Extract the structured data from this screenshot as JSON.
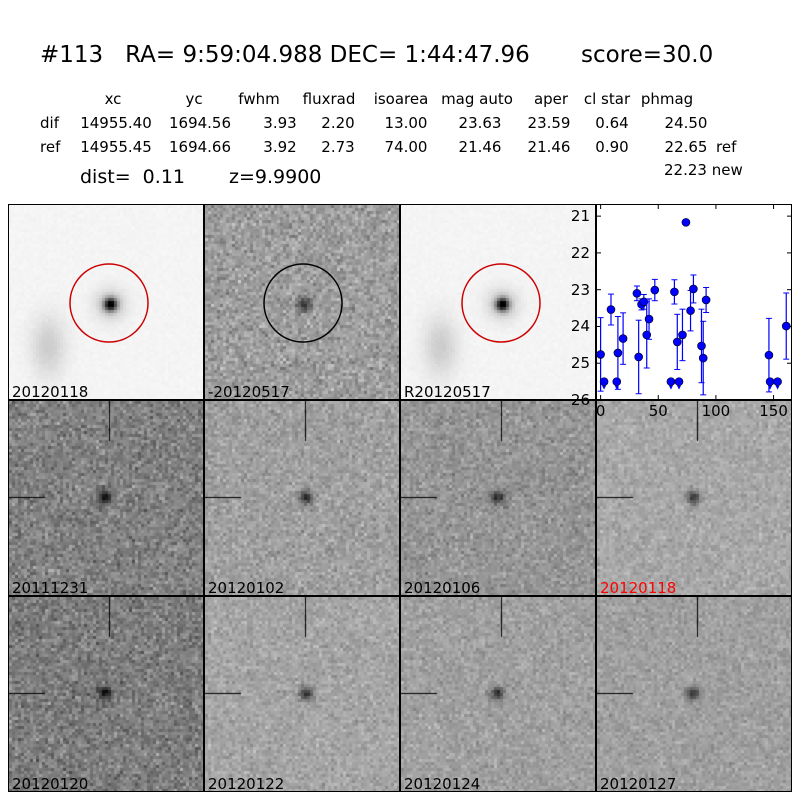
{
  "title": "#113   RA= 9:59:04.988 DEC= 1:44:47.96       score=30.0",
  "table": {
    "columns": [
      "xc",
      "yc",
      "fwhm",
      "fluxrad",
      "isoarea",
      "mag auto",
      "aper",
      "cl star",
      "phmag"
    ],
    "rows": [
      {
        "label": "dif",
        "values": [
          "14955.40",
          "1694.56",
          "3.93",
          "2.20",
          "13.00",
          "23.63",
          "23.59",
          "0.64",
          "24.50"
        ],
        "note": ""
      },
      {
        "label": "ref",
        "values": [
          "14955.45",
          "1694.66",
          "3.92",
          "2.73",
          "74.00",
          "21.46",
          "21.46",
          "0.90",
          "22.65"
        ],
        "note": "ref"
      }
    ],
    "extra": "22.23 new"
  },
  "dist_text": "dist=  0.11",
  "z_text": "z=9.9900",
  "panels": [
    {
      "label": "20120118",
      "kind": "ref",
      "circle": "#cc0000",
      "label_color": "#000000"
    },
    {
      "label": "-20120517",
      "kind": "dif",
      "circle": "#000000",
      "label_color": "#000000"
    },
    {
      "label": "R20120517",
      "kind": "ref",
      "circle": "#cc0000",
      "label_color": "#000000"
    },
    {
      "label": "20111231",
      "kind": "epoch",
      "label_color": "#000000"
    },
    {
      "label": "20120102",
      "kind": "epoch",
      "label_color": "#000000"
    },
    {
      "label": "20120106",
      "kind": "epoch",
      "label_color": "#000000"
    },
    {
      "label": "20120118",
      "kind": "epoch",
      "label_color": "#ff0000"
    },
    {
      "label": "20120120",
      "kind": "epoch",
      "label_color": "#000000"
    },
    {
      "label": "20120122",
      "kind": "epoch",
      "label_color": "#000000"
    },
    {
      "label": "20120124",
      "kind": "epoch",
      "label_color": "#000000"
    },
    {
      "label": "20120127",
      "kind": "epoch",
      "label_color": "#000000"
    }
  ],
  "chart_data": {
    "type": "scatter",
    "xlim": [
      -4,
      166
    ],
    "ylim": [
      26,
      20.67
    ],
    "y_inverted": true,
    "xticks": [
      0,
      50,
      100,
      150
    ],
    "yticks": [
      21,
      22,
      23,
      24,
      25,
      26
    ],
    "marker_color": "#0000ff",
    "points": [
      {
        "x": 0,
        "y": 24.76,
        "err": 1.0,
        "limit": false
      },
      {
        "x": 3,
        "y": 25.5,
        "err": 0,
        "limit": true
      },
      {
        "x": 9,
        "y": 23.54,
        "err": 0.42,
        "limit": false
      },
      {
        "x": 14,
        "y": 25.5,
        "err": 0,
        "limit": true
      },
      {
        "x": 15,
        "y": 24.72,
        "err": 0.99,
        "limit": false
      },
      {
        "x": 19.5,
        "y": 24.33,
        "err": 0.7,
        "limit": false
      },
      {
        "x": 31.5,
        "y": 23.1,
        "err": 0.2,
        "limit": false
      },
      {
        "x": 33,
        "y": 24.83,
        "err": 1.0,
        "limit": false
      },
      {
        "x": 35.5,
        "y": 23.4,
        "err": 0.15,
        "limit": false
      },
      {
        "x": 37.5,
        "y": 23.33,
        "err": 0.2,
        "limit": false
      },
      {
        "x": 40,
        "y": 24.23,
        "err": 0.9,
        "limit": false
      },
      {
        "x": 42,
        "y": 23.8,
        "err": 0.55,
        "limit": false
      },
      {
        "x": 47,
        "y": 23.01,
        "err": 0.29,
        "limit": false
      },
      {
        "x": 61,
        "y": 25.5,
        "err": 0,
        "limit": true
      },
      {
        "x": 64,
        "y": 23.06,
        "err": 0.33,
        "limit": false
      },
      {
        "x": 66.5,
        "y": 24.42,
        "err": 0.75,
        "limit": false
      },
      {
        "x": 68,
        "y": 25.5,
        "err": 0,
        "limit": true
      },
      {
        "x": 71,
        "y": 24.23,
        "err": 0.7,
        "limit": false
      },
      {
        "x": 74,
        "y": 21.17,
        "err": 0,
        "limit": false
      },
      {
        "x": 78,
        "y": 23.57,
        "err": 0.55,
        "limit": false
      },
      {
        "x": 80.5,
        "y": 22.98,
        "err": 0.38,
        "limit": false
      },
      {
        "x": 87.5,
        "y": 24.53,
        "err": 1.0,
        "limit": false
      },
      {
        "x": 89,
        "y": 24.86,
        "err": 1.0,
        "limit": false
      },
      {
        "x": 91.5,
        "y": 23.28,
        "err": 0.34,
        "limit": false
      },
      {
        "x": 146,
        "y": 24.78,
        "err": 1.0,
        "limit": false
      },
      {
        "x": 147,
        "y": 25.5,
        "err": 0,
        "limit": true
      },
      {
        "x": 153.5,
        "y": 25.5,
        "err": 0,
        "limit": true
      },
      {
        "x": 161,
        "y": 23.99,
        "err": 0.9,
        "limit": false
      }
    ]
  }
}
